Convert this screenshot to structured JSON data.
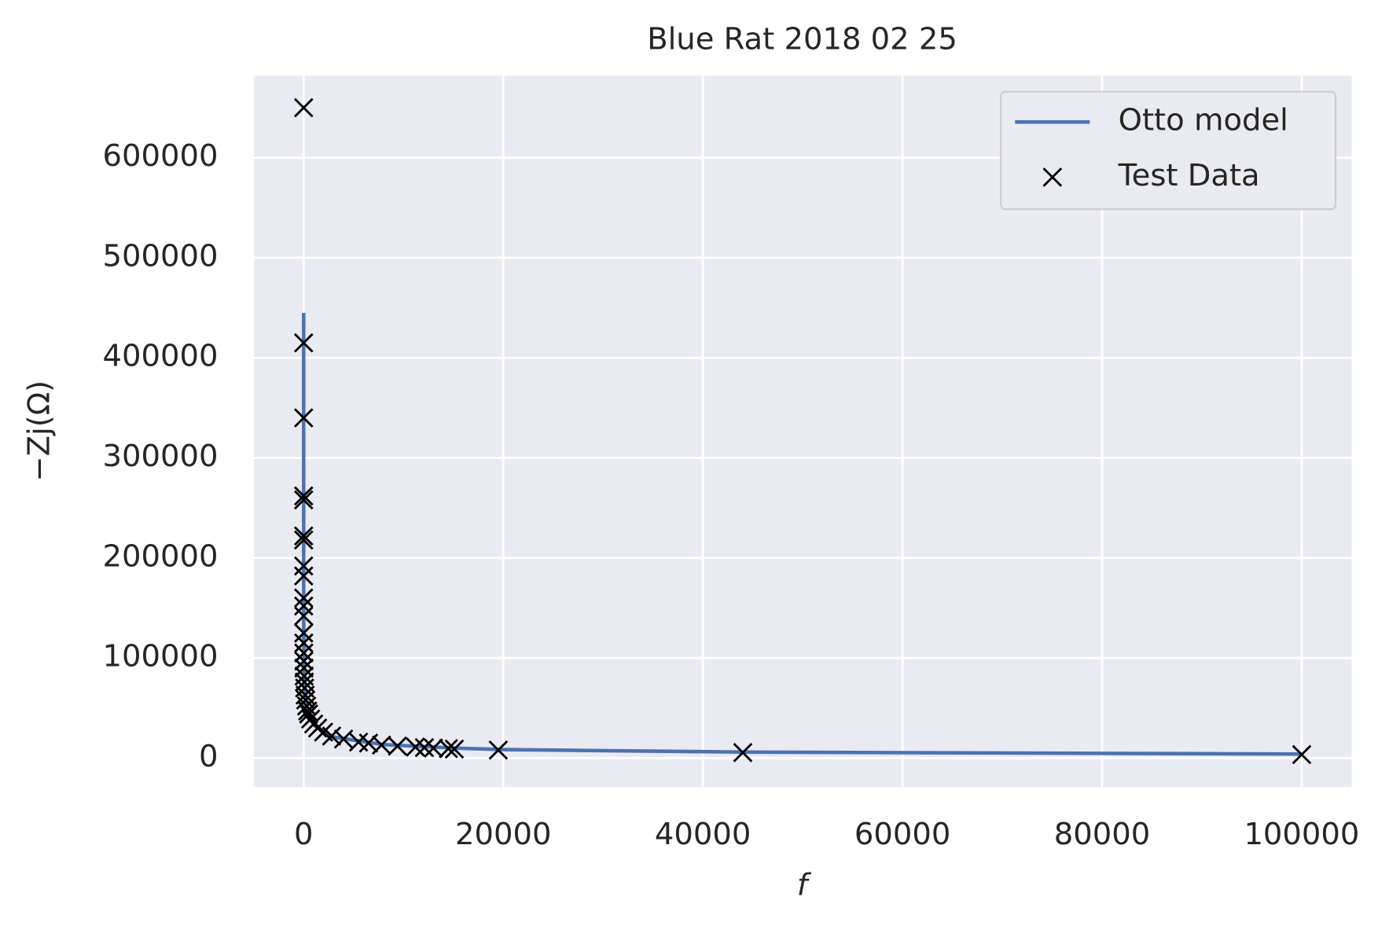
{
  "chart_data": {
    "type": "line",
    "title": "Blue Rat 2018 02 25",
    "xlabel": "f",
    "ylabel": "−Zj(Ω)",
    "xlim": [
      -5000,
      105000
    ],
    "ylim": [
      -29000,
      682000
    ],
    "xticks": [
      0,
      20000,
      40000,
      60000,
      80000,
      100000
    ],
    "yticks": [
      0,
      100000,
      200000,
      300000,
      400000,
      500000,
      600000
    ],
    "grid": true,
    "legend": "upper right",
    "series": [
      {
        "name": "Otto model",
        "color": "#4c72b0",
        "marker": "none",
        "x": [
          0.1,
          0.5,
          1,
          3,
          10,
          50,
          200,
          1000,
          3000,
          8000,
          15000,
          20000,
          44000,
          100000
        ],
        "values": [
          445000,
          300000,
          230000,
          170000,
          120000,
          80000,
          55000,
          33000,
          21000,
          13500,
          10000,
          8500,
          6000,
          4000
        ]
      },
      {
        "name": "Test Data",
        "color": "#000000",
        "marker": "x",
        "x": [
          0.1,
          0.2,
          0.3,
          0.5,
          0.6,
          0.8,
          1,
          1.5,
          2,
          3,
          4,
          5,
          7,
          10,
          15,
          20,
          30,
          50,
          70,
          100,
          150,
          200,
          300,
          400,
          500,
          700,
          1000,
          1400,
          2000,
          2800,
          4000,
          5500,
          6500,
          7800,
          9400,
          11200,
          12100,
          13000,
          14500,
          15100,
          19500,
          44000,
          100000
        ],
        "values": [
          650000,
          415000,
          340000,
          262000,
          258000,
          222000,
          218000,
          192000,
          182000,
          160000,
          152000,
          142000,
          125000,
          115000,
          105000,
          97000,
          90000,
          82000,
          76000,
          70000,
          63000,
          58000,
          52000,
          47000,
          44000,
          39000,
          34000,
          30000,
          26000,
          22000,
          19000,
          16000,
          15000,
          13000,
          12000,
          11000,
          10500,
          10000,
          9500,
          9000,
          8000,
          5500,
          3500
        ]
      }
    ]
  }
}
